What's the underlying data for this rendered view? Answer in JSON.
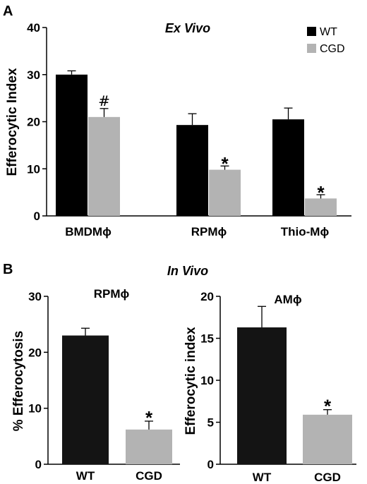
{
  "panel_a_letter": "A",
  "panel_b_letter": "B",
  "colors": {
    "wt": "#000000",
    "cgd": "#b3b3b3",
    "wt_b": "#141414"
  },
  "chart_data": [
    {
      "type": "bar",
      "panel": "A",
      "title": "Ex Vivo",
      "ylabel": "Efferocytic Index",
      "ylim": [
        0,
        40
      ],
      "yticks": [
        "0",
        "10",
        "20",
        "30",
        "40"
      ],
      "categories": [
        "BMDMϕ",
        "RPMϕ",
        "Thio-Mϕ"
      ],
      "legend_position": "top-right",
      "series": [
        {
          "name": "WT",
          "values": [
            30,
            19.3,
            20.5
          ],
          "errors": [
            0.8,
            2.4,
            2.4
          ]
        },
        {
          "name": "CGD",
          "values": [
            21,
            9.8,
            3.7
          ],
          "errors": [
            1.8,
            0.8,
            0.8
          ]
        }
      ],
      "annotations": [
        "#",
        "*",
        "*"
      ]
    },
    {
      "type": "bar",
      "panel": "B-left",
      "section_title": "In Vivo",
      "title": "RPMϕ",
      "ylabel": "% Efferocytosis",
      "ylim": [
        0,
        30
      ],
      "yticks": [
        "0",
        "10",
        "20",
        "30"
      ],
      "categories": [
        "WT",
        "CGD"
      ],
      "values": [
        23,
        6.2
      ],
      "errors": [
        1.3,
        1.5
      ],
      "annotations": [
        "",
        "*"
      ]
    },
    {
      "type": "bar",
      "panel": "B-right",
      "title": "AMϕ",
      "ylabel": "Efferocytic index",
      "ylim": [
        0,
        20
      ],
      "yticks": [
        "0",
        "5",
        "10",
        "15",
        "20"
      ],
      "categories": [
        "WT",
        "CGD"
      ],
      "values": [
        16.3,
        5.9
      ],
      "errors": [
        2.5,
        0.6
      ],
      "annotations": [
        "",
        "*"
      ]
    }
  ]
}
